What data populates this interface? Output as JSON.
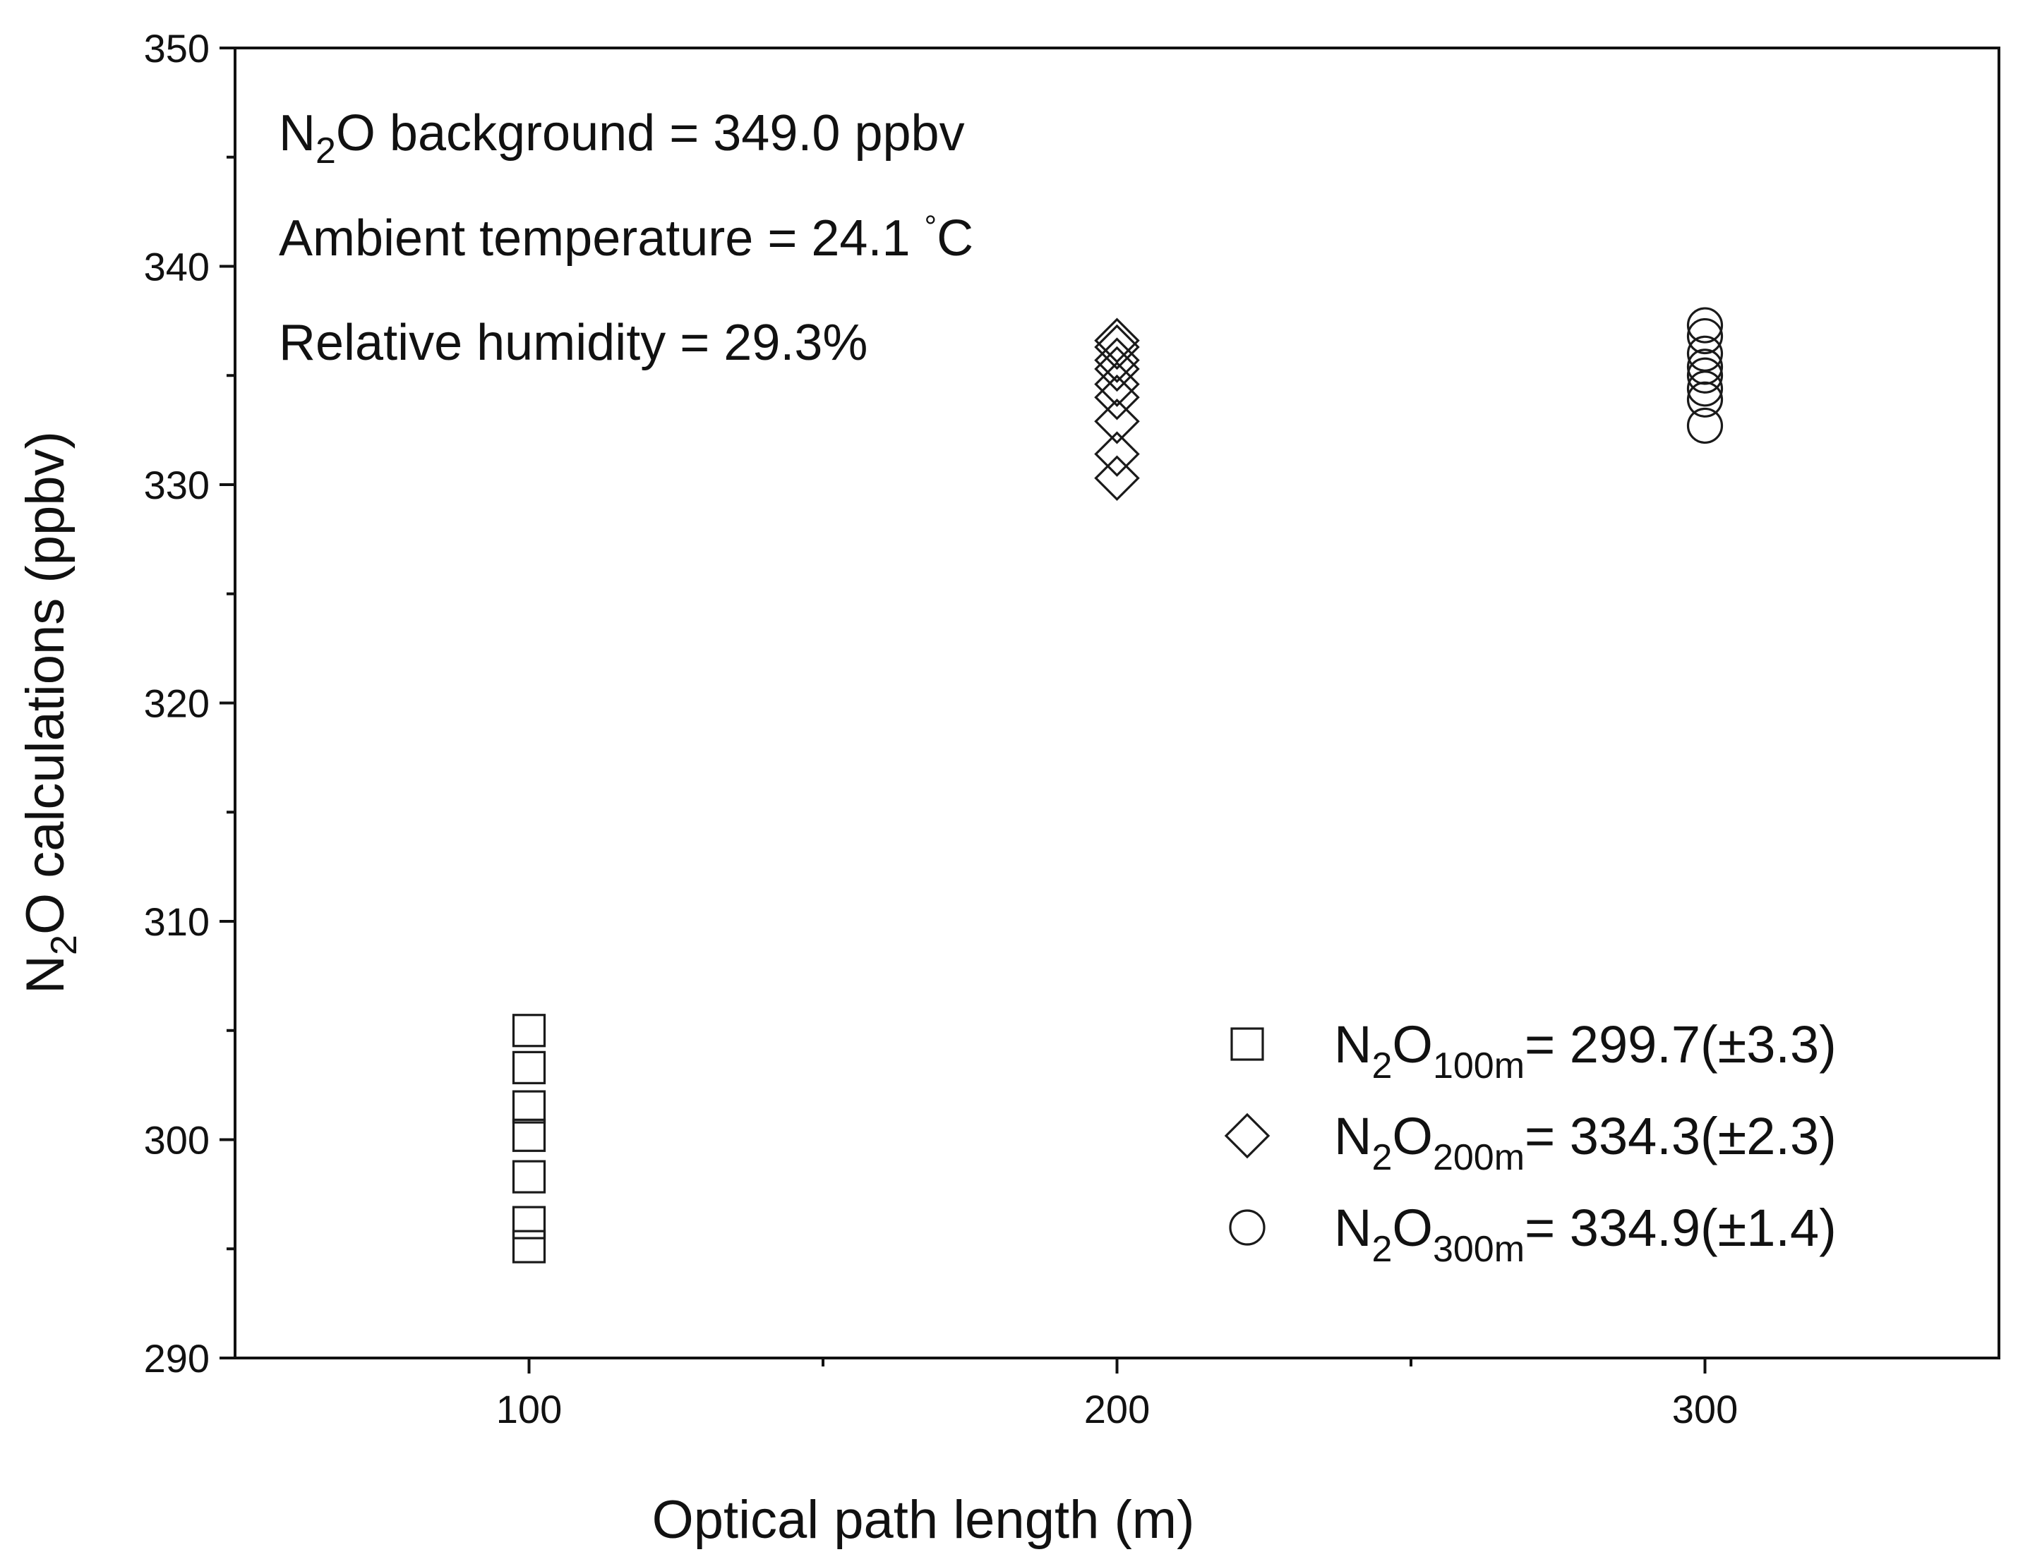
{
  "colors": {
    "axis": "#111111",
    "marker": "#1a1a1a",
    "background": "#ffffff"
  },
  "annotations": {
    "line1": {
      "pre": "N",
      "sub": "2",
      "post": "O background = 349.0 ppbv"
    },
    "line2": {
      "pre": "Ambient temperature = 24.1 ",
      "deg": "°",
      "post": "C"
    },
    "line3": "Relative humidity = 29.3%"
  },
  "axes": {
    "xlabel": "Optical path length (m)",
    "ylabel": {
      "pre": "N",
      "sub": "2",
      "post": "O calculations (ppbv)"
    }
  },
  "chart_data": {
    "type": "scatter",
    "title": "",
    "xlabel": "Optical path length (m)",
    "ylabel": "N2O calculations (ppbv)",
    "xlim": [
      50,
      350
    ],
    "ylim": [
      290,
      350
    ],
    "xticks": [
      100,
      200,
      300
    ],
    "xticks_minor": [
      150,
      250
    ],
    "yticks": [
      290,
      300,
      310,
      320,
      330,
      340,
      350
    ],
    "yticks_minor": [
      295,
      305,
      315,
      325,
      335,
      345
    ],
    "grid": false,
    "legend_position": "bottom-right",
    "series": [
      {
        "marker": "square",
        "legend": {
          "pre": "N",
          "sub1": "2",
          "mid": "O",
          "sub2": "100m",
          "post": "= 299.7(±3.3)"
        },
        "points": [
          {
            "x": 100,
            "y": 305.0
          },
          {
            "x": 100,
            "y": 303.3
          },
          {
            "x": 100,
            "y": 301.5
          },
          {
            "x": 100,
            "y": 300.2
          },
          {
            "x": 100,
            "y": 298.3
          },
          {
            "x": 100,
            "y": 296.2
          },
          {
            "x": 100,
            "y": 295.1
          }
        ]
      },
      {
        "marker": "diamond",
        "legend": {
          "pre": "N",
          "sub1": "2",
          "mid": "O",
          "sub2": "200m",
          "post": "= 334.3(±2.3)"
        },
        "points": [
          {
            "x": 200,
            "y": 336.6
          },
          {
            "x": 200,
            "y": 336.3
          },
          {
            "x": 200,
            "y": 335.7
          },
          {
            "x": 200,
            "y": 335.3
          },
          {
            "x": 200,
            "y": 334.6
          },
          {
            "x": 200,
            "y": 334.0
          },
          {
            "x": 200,
            "y": 332.9
          },
          {
            "x": 200,
            "y": 331.4
          },
          {
            "x": 200,
            "y": 330.3
          }
        ]
      },
      {
        "marker": "circle",
        "legend": {
          "pre": "N",
          "sub1": "2",
          "mid": "O",
          "sub2": "300m",
          "post": "= 334.9(±1.4)"
        },
        "points": [
          {
            "x": 300,
            "y": 337.3
          },
          {
            "x": 300,
            "y": 336.8
          },
          {
            "x": 300,
            "y": 336.0
          },
          {
            "x": 300,
            "y": 335.4
          },
          {
            "x": 300,
            "y": 335.0
          },
          {
            "x": 300,
            "y": 334.4
          },
          {
            "x": 300,
            "y": 333.9
          },
          {
            "x": 300,
            "y": 332.7
          }
        ]
      }
    ]
  }
}
